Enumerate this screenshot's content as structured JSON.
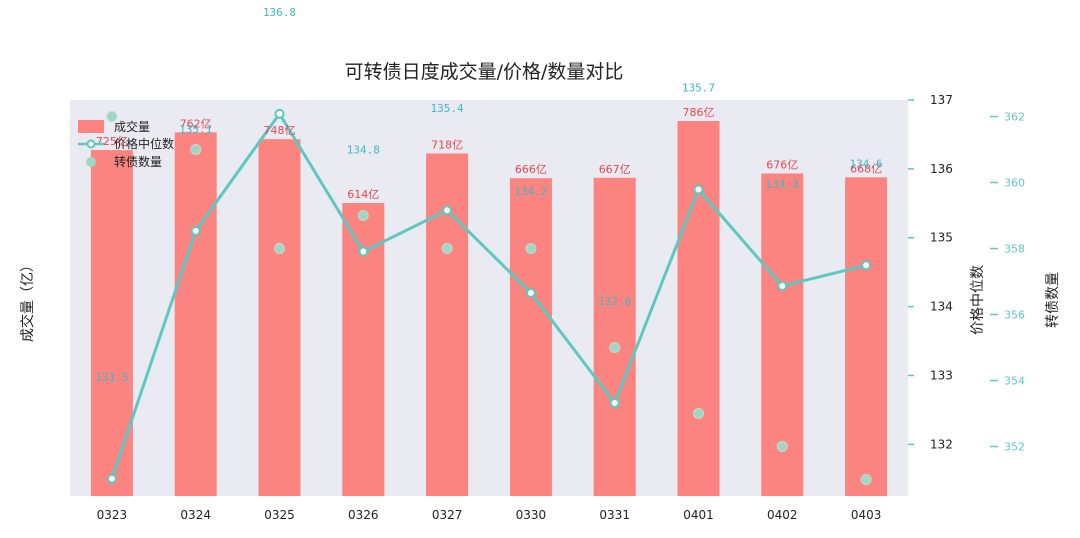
{
  "chart_data": {
    "type": "bar",
    "title": "可转债日度成交量/价格/数量对比",
    "categories": [
      "0323",
      "0324",
      "0325",
      "0326",
      "0327",
      "0330",
      "0331",
      "0401",
      "0402",
      "0403"
    ],
    "ylabel_left": "成交量（亿）",
    "ylabel_right1": "价格中位数",
    "ylabel_right2": "转债数量",
    "y_left_range": [
      0,
      830
    ],
    "y_right1_range": [
      131.25,
      137.0
    ],
    "y_right1_ticks": [
      132,
      133,
      134,
      135,
      136,
      137
    ],
    "y_right2_range": [
      350.5,
      362.5
    ],
    "y_right2_ticks": [
      352,
      354,
      356,
      358,
      360,
      362
    ],
    "legend_position": "top-left",
    "series": [
      {
        "name": "成交量",
        "kind": "bar",
        "axis": "left",
        "values": [
          725,
          762,
          748,
          614,
          718,
          666,
          667,
          786,
          676,
          668
        ],
        "labels": [
          "725亿",
          "762亿",
          "748亿",
          "614亿",
          "718亿",
          "666亿",
          "667亿",
          "786亿",
          "676亿",
          "668亿"
        ]
      },
      {
        "name": "价格中位数",
        "kind": "line",
        "axis": "right1",
        "values": [
          131.5,
          135.1,
          136.8,
          134.8,
          135.4,
          134.2,
          132.6,
          135.7,
          134.3,
          134.6
        ],
        "labels": [
          "131.5",
          "135.1",
          "136.8",
          "134.8",
          "135.4",
          "134.2",
          "132.6",
          "135.7",
          "134.3",
          "134.6"
        ]
      },
      {
        "name": "转债数量",
        "kind": "scatter",
        "axis": "right2",
        "values": [
          362,
          361,
          358,
          359,
          358,
          358,
          355,
          353,
          352,
          351
        ]
      }
    ],
    "colors": {
      "bar": "#fb8380",
      "bar_label": "#e8474f",
      "line": "#5ec8c0",
      "line_label": "#3fb8c6",
      "scatter": "#9fd6c6",
      "axis_tick": "#5ec8c0",
      "plot_bg": "#eaeaf2"
    }
  }
}
